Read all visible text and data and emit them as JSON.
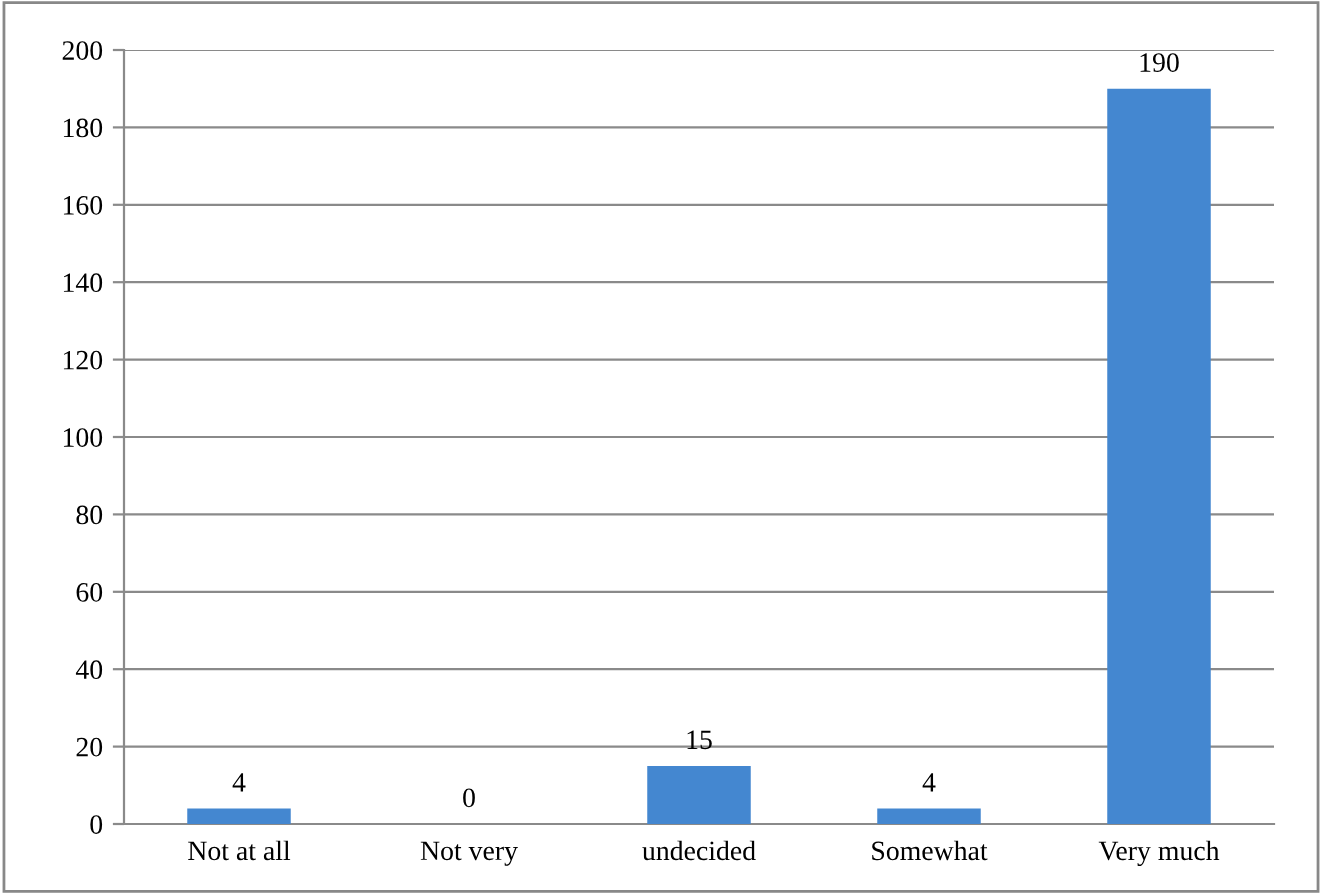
{
  "chart_data": {
    "type": "bar",
    "categories": [
      "Not at all",
      "Not very",
      "undecided",
      "Somewhat",
      "Very much"
    ],
    "values": [
      4,
      0,
      15,
      4,
      190
    ],
    "color": "#4487d0",
    "ylim": [
      0,
      200
    ],
    "yticks": [
      0,
      20,
      40,
      60,
      80,
      100,
      120,
      140,
      160,
      180,
      200
    ],
    "grid": "y",
    "data_labels": true
  }
}
